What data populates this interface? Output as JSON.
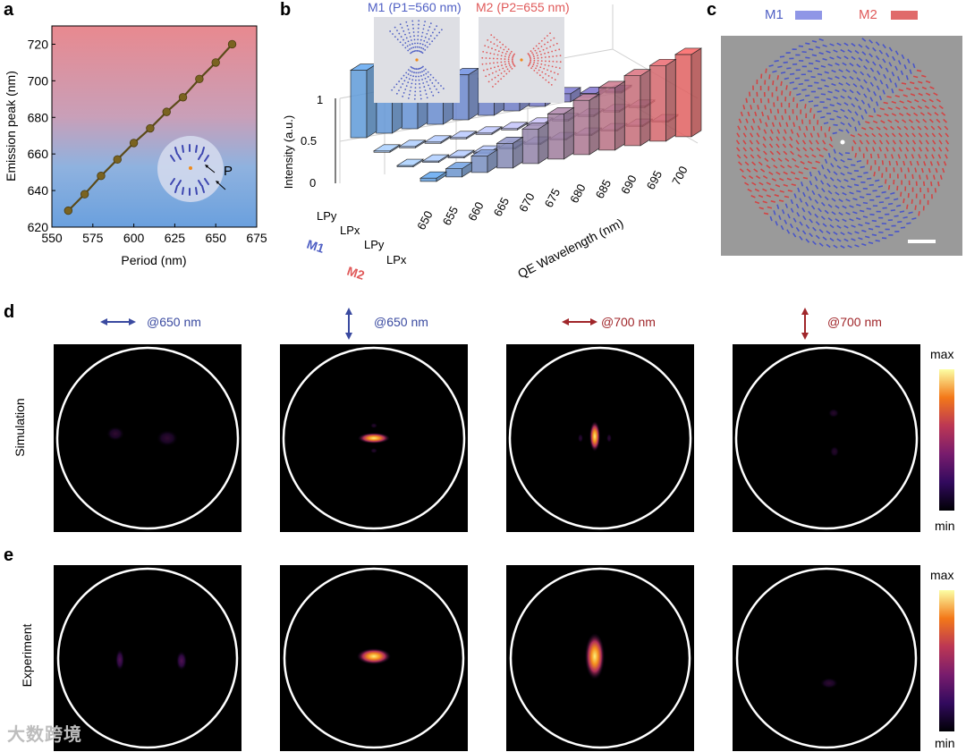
{
  "panel_labels": {
    "a": "a",
    "b": "b",
    "c": "c",
    "d": "d",
    "e": "e"
  },
  "colors": {
    "m1": "#4f5fc4",
    "m2": "#e05a5a",
    "dark_red": "#a0262a",
    "blue_arrow": "#3a4aa0"
  },
  "chart_data": [
    {
      "type": "line",
      "panel": "a",
      "title": "",
      "xlabel": "Period (nm)",
      "ylabel": "Emission peak (nm)",
      "xlim": [
        550,
        675
      ],
      "ylim": [
        620,
        730
      ],
      "xticks": [
        550,
        575,
        600,
        625,
        650,
        675
      ],
      "yticks": [
        620,
        640,
        660,
        680,
        700,
        720
      ],
      "series": [
        {
          "name": "Emission peak",
          "x": [
            560,
            570,
            580,
            590,
            600,
            610,
            620,
            630,
            640,
            650,
            660
          ],
          "y": [
            629,
            638,
            648,
            657,
            666,
            674,
            683,
            691,
            701,
            710,
            720
          ]
        }
      ],
      "inset_label": "P"
    },
    {
      "type": "bar",
      "panel": "b",
      "title_m1": "M1 (P1=560 nm)",
      "title_m2": "M2 (P2=655 nm)",
      "zlabel": "Intensity (a.u.)",
      "xlabel": "QE Wavelength (nm)",
      "zticks": [
        "0",
        "0.5",
        "1"
      ],
      "categories": [
        "650",
        "655",
        "660",
        "665",
        "670",
        "675",
        "680",
        "685",
        "690",
        "695",
        "700"
      ],
      "row_labels": [
        "LPy",
        "LPx",
        "LPy",
        "LPx"
      ],
      "group_labels": [
        "M1",
        "M2"
      ],
      "series": [
        {
          "name": "M1 LPy",
          "values": [
            0.82,
            0.78,
            0.72,
            0.64,
            0.55,
            0.45,
            0.32,
            0.2,
            0.1,
            0.05,
            0.02
          ]
        },
        {
          "name": "M1 LPx",
          "values": [
            0.0,
            0.0,
            0.0,
            0.0,
            0.0,
            0.0,
            0.0,
            0.0,
            0.0,
            0.0,
            0.0
          ]
        },
        {
          "name": "M2 LPy",
          "values": [
            0.0,
            0.0,
            0.0,
            0.0,
            0.0,
            0.0,
            0.0,
            0.0,
            0.0,
            0.0,
            0.0
          ]
        },
        {
          "name": "M2 LPx",
          "values": [
            0.04,
            0.1,
            0.2,
            0.3,
            0.42,
            0.55,
            0.66,
            0.76,
            0.85,
            0.92,
            1.0
          ]
        }
      ]
    }
  ],
  "panel_c": {
    "m1_label": "M1",
    "m2_label": "M2"
  },
  "panel_d": {
    "row_label": "Simulation",
    "columns": [
      {
        "title": "@650 nm",
        "arrow": "horizontal",
        "color": "m1"
      },
      {
        "title": "@650 nm",
        "arrow": "vertical",
        "color": "m1"
      },
      {
        "title": "@700 nm",
        "arrow": "horizontal",
        "color": "m2"
      },
      {
        "title": "@700 nm",
        "arrow": "vertical",
        "color": "m2"
      }
    ],
    "colorbar": {
      "max": "max",
      "min": "min"
    }
  },
  "panel_e": {
    "row_label": "Experiment",
    "colorbar": {
      "max": "max",
      "min": "min"
    }
  },
  "watermark": "大数跨境"
}
